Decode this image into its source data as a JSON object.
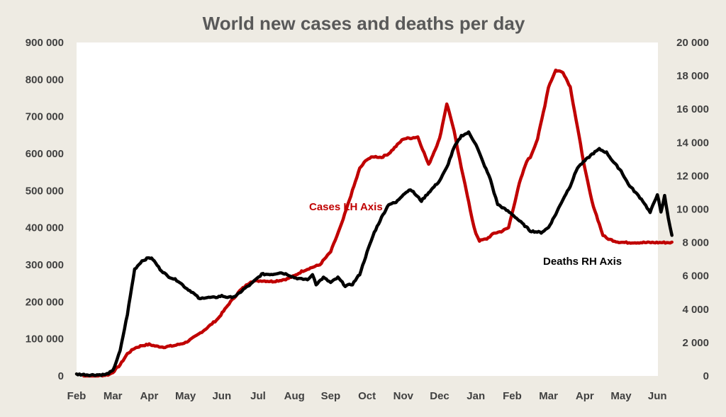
{
  "chart_data": {
    "type": "line",
    "title": "World new cases and deaths per day",
    "x_tick_labels": [
      "Feb",
      "Mar",
      "Apr",
      "May",
      "Jun",
      "Jul",
      "Aug",
      "Sep",
      "Oct",
      "Nov",
      "Dec",
      "Jan",
      "Feb",
      "Mar",
      "Apr",
      "May",
      "Jun"
    ],
    "x_unit": "months since 1 Feb 2020",
    "xlim": [
      0,
      16.4
    ],
    "y_left": {
      "ylim": [
        0,
        900000
      ],
      "ticks": [
        0,
        100000,
        200000,
        300000,
        400000,
        500000,
        600000,
        700000,
        800000,
        900000
      ],
      "tick_labels": [
        "0",
        "100 000",
        "200 000",
        "300 000",
        "400 000",
        "500 000",
        "600 000",
        "700 000",
        "800 000",
        "900 000"
      ]
    },
    "y_right": {
      "ylim": [
        0,
        20000
      ],
      "ticks": [
        0,
        2000,
        4000,
        6000,
        8000,
        10000,
        12000,
        14000,
        16000,
        18000,
        20000
      ],
      "tick_labels": [
        "0",
        "2 000",
        "4 000",
        "6 000",
        "8 000",
        "10 000",
        "12 000",
        "14 000",
        "16 000",
        "18 000",
        "20 000"
      ]
    },
    "grid": false,
    "series": [
      {
        "name": "Cases LH Axis",
        "axis": "left",
        "color": "#c00000",
        "x": [
          0.2,
          0.6,
          0.9,
          1.0,
          1.2,
          1.4,
          1.6,
          1.8,
          2.0,
          2.2,
          2.4,
          2.7,
          3.0,
          3.3,
          3.6,
          3.9,
          4.2,
          4.5,
          4.8,
          5.1,
          5.4,
          5.6,
          5.8,
          6.0,
          6.2,
          6.4,
          6.7,
          7.0,
          7.3,
          7.6,
          7.8,
          8.0,
          8.2,
          8.4,
          8.6,
          8.8,
          9.0,
          9.2,
          9.4,
          9.7,
          10.0,
          10.2,
          10.3,
          10.4,
          10.5,
          10.6,
          10.7,
          10.8,
          10.9,
          11.0,
          11.1,
          11.3,
          11.5,
          11.7,
          11.9,
          12.0,
          12.2,
          12.4,
          12.5,
          12.7,
          12.9,
          13.0,
          13.2,
          13.4,
          13.6,
          13.8,
          14.0,
          14.2,
          14.4,
          14.5,
          14.6,
          14.7,
          14.9,
          15.1,
          15.3,
          15.5,
          15.7,
          15.9,
          16.1,
          16.3,
          16.4
        ],
        "values": [
          0,
          0,
          4000,
          10000,
          30000,
          60000,
          75000,
          82000,
          85000,
          80000,
          78000,
          82000,
          90000,
          108000,
          130000,
          155000,
          195000,
          230000,
          255000,
          257000,
          255000,
          258000,
          262000,
          270000,
          282000,
          290000,
          300000,
          335000,
          410000,
          500000,
          560000,
          585000,
          592000,
          590000,
          600000,
          620000,
          640000,
          642000,
          645000,
          570000,
          640000,
          735000,
          700000,
          660000,
          610000,
          560000,
          520000,
          470000,
          420000,
          385000,
          365000,
          370000,
          385000,
          390000,
          400000,
          440000,
          520000,
          580000,
          590000,
          640000,
          730000,
          780000,
          825000,
          820000,
          780000,
          670000,
          560000,
          470000,
          410000,
          380000,
          372000,
          368000,
          362000,
          360000,
          360000,
          360000,
          360000,
          360000,
          360000,
          360000,
          360000
        ]
      },
      {
        "name": "Deaths RH Axis",
        "axis": "right",
        "color": "#000000",
        "x": [
          0.0,
          0.4,
          0.8,
          1.0,
          1.2,
          1.4,
          1.6,
          1.8,
          1.9,
          2.0,
          2.1,
          2.3,
          2.5,
          2.8,
          3.0,
          3.2,
          3.4,
          3.5,
          3.6,
          3.8,
          4.0,
          4.2,
          4.4,
          4.6,
          4.8,
          5.1,
          5.4,
          5.6,
          5.8,
          6.0,
          6.2,
          6.4,
          6.5,
          6.6,
          6.8,
          7.0,
          7.2,
          7.4,
          7.6,
          7.8,
          8.0,
          8.2,
          8.4,
          8.6,
          8.8,
          9.0,
          9.2,
          9.5,
          9.7,
          10.0,
          10.2,
          10.4,
          10.6,
          10.8,
          11.0,
          11.2,
          11.4,
          11.5,
          11.6,
          11.8,
          12.0,
          12.2,
          12.5,
          12.8,
          13.0,
          13.2,
          13.4,
          13.6,
          13.8,
          14.0,
          14.2,
          14.4,
          14.6,
          14.8,
          15.0,
          15.2,
          15.4,
          15.6,
          15.8,
          16.0,
          16.1,
          16.2,
          16.3,
          16.4
        ],
        "values": [
          100,
          60,
          80,
          300,
          1500,
          3700,
          6400,
          6900,
          7000,
          7100,
          7000,
          6400,
          6000,
          5700,
          5300,
          5000,
          4600,
          4700,
          4700,
          4700,
          4800,
          4700,
          4800,
          5200,
          5500,
          6100,
          6100,
          6200,
          6100,
          5900,
          5800,
          5800,
          6100,
          5500,
          5900,
          5600,
          5900,
          5400,
          5500,
          6100,
          7400,
          8600,
          9500,
          10300,
          10400,
          10900,
          11200,
          10500,
          11000,
          11700,
          12500,
          13700,
          14400,
          14600,
          13900,
          12800,
          11800,
          11000,
          10300,
          10000,
          9700,
          9300,
          8700,
          8600,
          8900,
          9700,
          10600,
          11400,
          12500,
          12900,
          13300,
          13600,
          13400,
          12800,
          12300,
          11500,
          11000,
          10500,
          9800,
          10900,
          9800,
          10800,
          9500,
          8400
        ]
      }
    ],
    "annotations": [
      {
        "text": "Cases LH Axis",
        "color": "#c00000"
      },
      {
        "text": "Deaths RH Axis",
        "color": "#000000"
      }
    ]
  }
}
